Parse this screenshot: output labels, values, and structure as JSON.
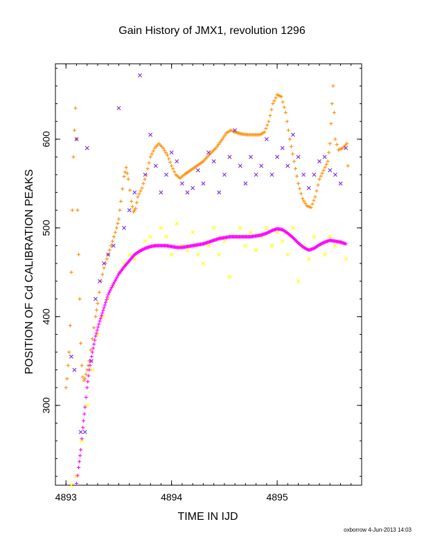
{
  "chart_data": {
    "type": "scatter",
    "title": "Gain History of JMX1, revolution 1296",
    "xlabel": "TIME IN IJD",
    "ylabel": "POSITION OF Cd CALIBRATION PEAKS",
    "xlim": [
      4892.9,
      4895.8
    ],
    "ylim": [
      210,
      685
    ],
    "xticks": [
      "4893",
      "4894",
      "4895"
    ],
    "yticks": [
      "300",
      "400",
      "500",
      "600"
    ],
    "grid": false,
    "footer": "oxborrow  4-Jun-2013 14:03",
    "series": [
      {
        "color": "#ff8c00",
        "marker": "plus",
        "points": [
          [
            4893.0,
            320
          ],
          [
            4893.01,
            330
          ],
          [
            4893.02,
            345
          ],
          [
            4893.03,
            360
          ],
          [
            4893.04,
            390
          ],
          [
            4893.05,
            450
          ],
          [
            4893.06,
            520
          ],
          [
            4893.07,
            580
          ],
          [
            4893.08,
            610
          ],
          [
            4893.09,
            635
          ],
          [
            4893.1,
            600
          ],
          [
            4893.11,
            520
          ],
          [
            4893.12,
            470
          ],
          [
            4893.13,
            420
          ],
          [
            4893.14,
            370
          ],
          [
            4893.15,
            345
          ],
          [
            4893.16,
            332
          ],
          [
            4893.17,
            328
          ],
          [
            4893.18,
            330
          ],
          [
            4893.2,
            340
          ],
          [
            4893.22,
            350
          ],
          [
            4893.25,
            375
          ],
          [
            4893.28,
            400
          ],
          [
            4893.3,
            415
          ],
          [
            4893.33,
            440
          ],
          [
            4893.36,
            455
          ],
          [
            4893.4,
            470
          ],
          [
            4893.44,
            485
          ],
          [
            4893.48,
            500
          ],
          [
            4893.5,
            510
          ],
          [
            4893.52,
            530
          ],
          [
            4893.55,
            558
          ],
          [
            4893.57,
            568
          ],
          [
            4893.59,
            555
          ],
          [
            4893.62,
            530
          ],
          [
            4893.64,
            518
          ],
          [
            4893.66,
            522
          ],
          [
            4893.68,
            535
          ],
          [
            4893.72,
            545
          ],
          [
            4893.76,
            560
          ],
          [
            4893.8,
            580
          ],
          [
            4893.84,
            590
          ],
          [
            4893.88,
            595
          ],
          [
            4893.92,
            590
          ],
          [
            4893.96,
            582
          ],
          [
            4894.0,
            570
          ],
          [
            4894.04,
            560
          ],
          [
            4894.08,
            556
          ],
          [
            4894.12,
            560
          ],
          [
            4894.18,
            565
          ],
          [
            4894.24,
            570
          ],
          [
            4894.3,
            575
          ],
          [
            4894.36,
            583
          ],
          [
            4894.42,
            590
          ],
          [
            4894.48,
            600
          ],
          [
            4894.52,
            607
          ],
          [
            4894.56,
            610
          ],
          [
            4894.6,
            608
          ],
          [
            4894.66,
            606
          ],
          [
            4894.72,
            605
          ],
          [
            4894.78,
            605
          ],
          [
            4894.84,
            605
          ],
          [
            4894.88,
            608
          ],
          [
            4894.92,
            620
          ],
          [
            4894.96,
            640
          ],
          [
            4895.0,
            650
          ],
          [
            4895.04,
            648
          ],
          [
            4895.08,
            630
          ],
          [
            4895.12,
            600
          ],
          [
            4895.16,
            575
          ],
          [
            4895.2,
            550
          ],
          [
            4895.24,
            533
          ],
          [
            4895.28,
            525
          ],
          [
            4895.32,
            523
          ],
          [
            4895.36,
            535
          ],
          [
            4895.4,
            555
          ],
          [
            4895.44,
            565
          ],
          [
            4895.48,
            575
          ],
          [
            4895.5,
            595
          ],
          [
            4895.52,
            640
          ],
          [
            4895.53,
            660
          ],
          [
            4895.55,
            600
          ],
          [
            4895.58,
            588
          ],
          [
            4895.62,
            590
          ],
          [
            4895.66,
            595
          ],
          [
            4895.67,
            570
          ]
        ]
      },
      {
        "color": "#7b2be2",
        "marker": "x",
        "points": [
          [
            4893.05,
            355
          ],
          [
            4893.08,
            340
          ],
          [
            4893.1,
            600
          ],
          [
            4893.14,
            270
          ],
          [
            4893.18,
            270
          ],
          [
            4893.2,
            590
          ],
          [
            4893.24,
            350
          ],
          [
            4893.28,
            420
          ],
          [
            4893.32,
            440
          ],
          [
            4893.36,
            460
          ],
          [
            4893.4,
            470
          ],
          [
            4893.45,
            480
          ],
          [
            4893.5,
            635
          ],
          [
            4893.55,
            500
          ],
          [
            4893.6,
            520
          ],
          [
            4893.65,
            540
          ],
          [
            4893.7,
            672
          ],
          [
            4893.75,
            560
          ],
          [
            4893.8,
            605
          ],
          [
            4893.85,
            570
          ],
          [
            4893.9,
            540
          ],
          [
            4893.95,
            560
          ],
          [
            4894.0,
            585
          ],
          [
            4894.05,
            575
          ],
          [
            4894.1,
            550
          ],
          [
            4894.15,
            540
          ],
          [
            4894.2,
            545
          ],
          [
            4894.25,
            565
          ],
          [
            4894.3,
            550
          ],
          [
            4894.35,
            585
          ],
          [
            4894.4,
            575
          ],
          [
            4894.45,
            540
          ],
          [
            4894.5,
            560
          ],
          [
            4894.55,
            580
          ],
          [
            4894.6,
            610
          ],
          [
            4894.65,
            570
          ],
          [
            4894.7,
            550
          ],
          [
            4894.75,
            580
          ],
          [
            4894.8,
            560
          ],
          [
            4894.85,
            570
          ],
          [
            4894.9,
            600
          ],
          [
            4894.95,
            560
          ],
          [
            4895.0,
            580
          ],
          [
            4895.05,
            590
          ],
          [
            4895.1,
            570
          ],
          [
            4895.15,
            605
          ],
          [
            4895.2,
            580
          ],
          [
            4895.25,
            560
          ],
          [
            4895.3,
            545
          ],
          [
            4895.35,
            560
          ],
          [
            4895.4,
            575
          ],
          [
            4895.45,
            580
          ],
          [
            4895.5,
            565
          ],
          [
            4895.55,
            560
          ],
          [
            4895.6,
            550
          ],
          [
            4895.65,
            590
          ]
        ]
      },
      {
        "color": "#ffff00",
        "marker": "x",
        "points": [
          [
            4893.05,
            210
          ],
          [
            4893.1,
            220
          ],
          [
            4893.15,
            260
          ],
          [
            4893.2,
            300
          ],
          [
            4893.25,
            340
          ],
          [
            4893.3,
            380
          ],
          [
            4893.35,
            400
          ],
          [
            4893.4,
            420
          ],
          [
            4893.45,
            435
          ],
          [
            4893.5,
            450
          ],
          [
            4893.55,
            460
          ],
          [
            4893.6,
            470
          ],
          [
            4893.65,
            465
          ],
          [
            4893.7,
            475
          ],
          [
            4893.75,
            485
          ],
          [
            4893.8,
            490
          ],
          [
            4893.85,
            480
          ],
          [
            4893.9,
            500
          ],
          [
            4893.95,
            490
          ],
          [
            4894.0,
            470
          ],
          [
            4894.05,
            505
          ],
          [
            4894.1,
            480
          ],
          [
            4894.15,
            475
          ],
          [
            4894.2,
            495
          ],
          [
            4894.25,
            470
          ],
          [
            4894.3,
            460
          ],
          [
            4894.35,
            480
          ],
          [
            4894.4,
            500
          ],
          [
            4894.45,
            470
          ],
          [
            4894.5,
            485
          ],
          [
            4894.55,
            445
          ],
          [
            4894.6,
            490
          ],
          [
            4894.65,
            500
          ],
          [
            4894.7,
            480
          ],
          [
            4894.75,
            495
          ],
          [
            4894.8,
            475
          ],
          [
            4894.85,
            490
          ],
          [
            4894.9,
            500
          ],
          [
            4894.95,
            480
          ],
          [
            4895.0,
            495
          ],
          [
            4895.05,
            485
          ],
          [
            4895.1,
            470
          ],
          [
            4895.15,
            500
          ],
          [
            4895.2,
            440
          ],
          [
            4895.25,
            480
          ],
          [
            4895.3,
            465
          ],
          [
            4895.35,
            490
          ],
          [
            4895.4,
            480
          ],
          [
            4895.45,
            470
          ],
          [
            4895.5,
            490
          ],
          [
            4895.55,
            480
          ],
          [
            4895.6,
            485
          ],
          [
            4895.65,
            465
          ]
        ]
      },
      {
        "color": "#ff00ff",
        "marker": "plus",
        "points": [
          [
            4893.1,
            212
          ],
          [
            4893.12,
            230
          ],
          [
            4893.14,
            250
          ],
          [
            4893.16,
            275
          ],
          [
            4893.18,
            298
          ],
          [
            4893.2,
            320
          ],
          [
            4893.22,
            340
          ],
          [
            4893.25,
            360
          ],
          [
            4893.28,
            378
          ],
          [
            4893.32,
            395
          ],
          [
            4893.36,
            410
          ],
          [
            4893.4,
            425
          ],
          [
            4893.45,
            437
          ],
          [
            4893.5,
            448
          ],
          [
            4893.55,
            456
          ],
          [
            4893.6,
            463
          ],
          [
            4893.65,
            470
          ],
          [
            4893.7,
            474
          ],
          [
            4893.75,
            477
          ],
          [
            4893.8,
            479
          ],
          [
            4893.85,
            480
          ],
          [
            4893.9,
            480
          ],
          [
            4893.95,
            480
          ],
          [
            4894.0,
            479
          ],
          [
            4894.05,
            478
          ],
          [
            4894.1,
            478
          ],
          [
            4894.15,
            479
          ],
          [
            4894.2,
            480
          ],
          [
            4894.25,
            481
          ],
          [
            4894.3,
            482
          ],
          [
            4894.35,
            484
          ],
          [
            4894.4,
            486
          ],
          [
            4894.45,
            488
          ],
          [
            4894.5,
            489
          ],
          [
            4894.55,
            490
          ],
          [
            4894.6,
            490
          ],
          [
            4894.65,
            490
          ],
          [
            4894.7,
            490
          ],
          [
            4894.75,
            490
          ],
          [
            4894.8,
            491
          ],
          [
            4894.85,
            492
          ],
          [
            4894.9,
            494
          ],
          [
            4894.95,
            497
          ],
          [
            4895.0,
            499
          ],
          [
            4895.05,
            498
          ],
          [
            4895.1,
            494
          ],
          [
            4895.15,
            489
          ],
          [
            4895.2,
            483
          ],
          [
            4895.25,
            478
          ],
          [
            4895.3,
            475
          ],
          [
            4895.35,
            477
          ],
          [
            4895.4,
            481
          ],
          [
            4895.45,
            484
          ],
          [
            4895.5,
            486
          ],
          [
            4895.55,
            485
          ],
          [
            4895.6,
            484
          ],
          [
            4895.65,
            482
          ]
        ]
      }
    ]
  }
}
